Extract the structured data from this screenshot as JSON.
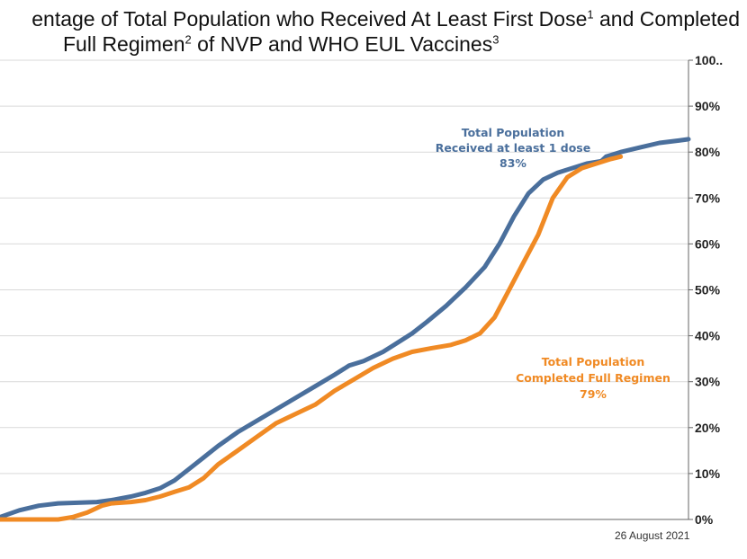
{
  "title": {
    "line1_text": "entage of Total Population who Received At Least First Dose",
    "line1_sup1": "1",
    "line1_mid": " and Completed",
    "line2_text": "Full Regimen",
    "line2_sup2": "2",
    "line2_mid": "  of NVP and WHO EUL Vaccines",
    "line2_sup3": "3"
  },
  "footer": {
    "date": "26 August 2021"
  },
  "chart_data": {
    "type": "line",
    "ylim": [
      0,
      100
    ],
    "y_ticks": [
      {
        "value": 0,
        "label": "0%"
      },
      {
        "value": 10,
        "label": "10%"
      },
      {
        "value": 20,
        "label": "20%"
      },
      {
        "value": 30,
        "label": "30%"
      },
      {
        "value": 40,
        "label": "40%"
      },
      {
        "value": 50,
        "label": "50%"
      },
      {
        "value": 60,
        "label": "60%"
      },
      {
        "value": 70,
        "label": "70%"
      },
      {
        "value": 80,
        "label": "80%"
      },
      {
        "value": 90,
        "label": "90%"
      },
      {
        "value": 100,
        "label": "100.."
      }
    ],
    "grid": true,
    "colors": {
      "first_dose": "#4a6f9c",
      "full_regimen": "#f08a24"
    },
    "series": [
      {
        "id": "first_dose",
        "values": [
          [
            0,
            0.5
          ],
          [
            20,
            2
          ],
          [
            40,
            3
          ],
          [
            60,
            3.5
          ],
          [
            100,
            3.8
          ],
          [
            115,
            4.2
          ],
          [
            135,
            5
          ],
          [
            150,
            5.8
          ],
          [
            165,
            6.8
          ],
          [
            180,
            8.5
          ],
          [
            195,
            11
          ],
          [
            210,
            13.5
          ],
          [
            225,
            16
          ],
          [
            245,
            19
          ],
          [
            265,
            21.5
          ],
          [
            285,
            24
          ],
          [
            305,
            26.5
          ],
          [
            325,
            29
          ],
          [
            345,
            31.5
          ],
          [
            360,
            33.5
          ],
          [
            375,
            34.5
          ],
          [
            395,
            36.5
          ],
          [
            410,
            38.5
          ],
          [
            425,
            40.5
          ],
          [
            440,
            43
          ],
          [
            460,
            46.5
          ],
          [
            480,
            50.5
          ],
          [
            500,
            55
          ],
          [
            515,
            60
          ],
          [
            530,
            66
          ],
          [
            545,
            71
          ],
          [
            560,
            74
          ],
          [
            575,
            75.5
          ],
          [
            590,
            76.5
          ],
          [
            605,
            77.5
          ],
          [
            620,
            78
          ],
          [
            625,
            79
          ],
          [
            640,
            80
          ],
          [
            660,
            81
          ],
          [
            680,
            82
          ],
          [
            700,
            82.5
          ],
          [
            710,
            82.8
          ]
        ]
      },
      {
        "id": "full_regimen",
        "values": [
          [
            0,
            0
          ],
          [
            60,
            0
          ],
          [
            75,
            0.5
          ],
          [
            90,
            1.5
          ],
          [
            105,
            3
          ],
          [
            115,
            3.5
          ],
          [
            135,
            3.8
          ],
          [
            150,
            4.2
          ],
          [
            165,
            5
          ],
          [
            180,
            6
          ],
          [
            195,
            7
          ],
          [
            210,
            9
          ],
          [
            225,
            12
          ],
          [
            245,
            15
          ],
          [
            265,
            18
          ],
          [
            285,
            21
          ],
          [
            305,
            23
          ],
          [
            325,
            25
          ],
          [
            345,
            28
          ],
          [
            365,
            30.5
          ],
          [
            385,
            33
          ],
          [
            405,
            35
          ],
          [
            425,
            36.5
          ],
          [
            445,
            37.3
          ],
          [
            465,
            38
          ],
          [
            480,
            39
          ],
          [
            495,
            40.5
          ],
          [
            510,
            44
          ],
          [
            525,
            50
          ],
          [
            540,
            56
          ],
          [
            555,
            62
          ],
          [
            570,
            70
          ],
          [
            585,
            74.5
          ],
          [
            600,
            76.5
          ],
          [
            615,
            77.5
          ],
          [
            630,
            78.5
          ],
          [
            640,
            79
          ]
        ]
      }
    ],
    "annotations": [
      {
        "series": "first_dose",
        "lines": [
          "Total Population",
          "Received at least 1 dose",
          "83%"
        ]
      },
      {
        "series": "full_regimen",
        "lines": [
          "Total Population",
          "Completed Full Regimen",
          "79%"
        ]
      }
    ]
  }
}
